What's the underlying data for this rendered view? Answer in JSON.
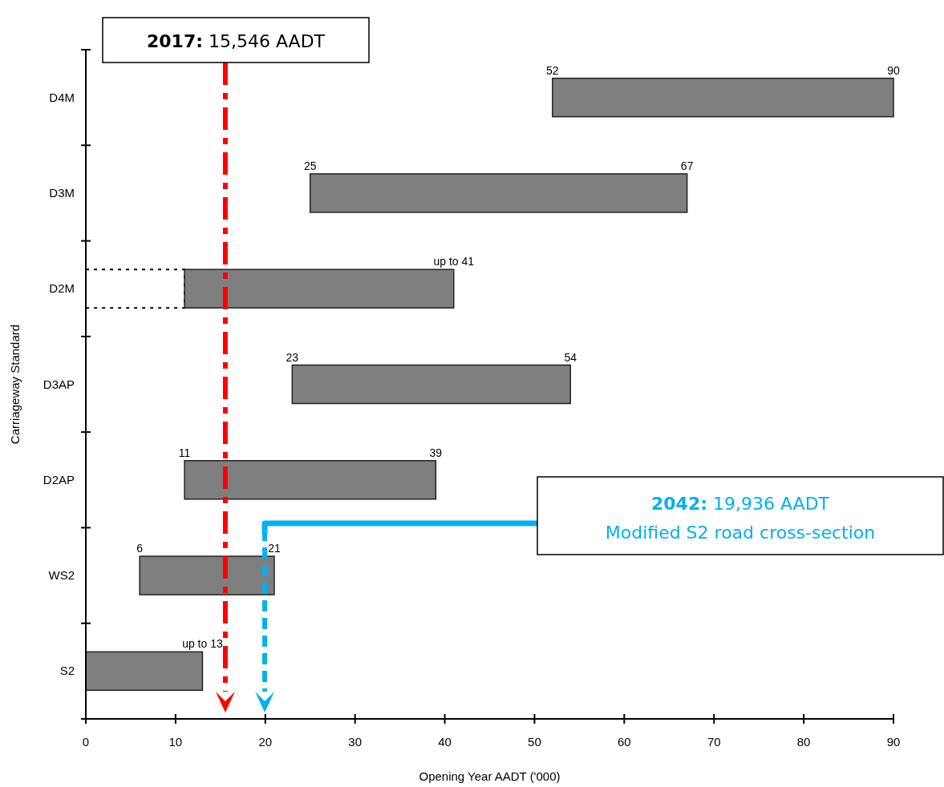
{
  "chart_data": {
    "type": "bar",
    "orientation": "horizontal",
    "xlabel": "Opening Year AADT ('000)",
    "ylabel": "Carriageway Standard",
    "categories": [
      "D4M",
      "D3M",
      "D2M",
      "D3AP",
      "D2AP",
      "WS2",
      "S2"
    ],
    "series": [
      {
        "color": "#7f7f7f",
        "base": [
          52,
          25,
          11,
          23,
          11,
          6,
          0
        ],
        "values": [
          38,
          42,
          30,
          31,
          28,
          15,
          13
        ]
      },
      {
        "color": "#000000",
        "line_style": "dotted",
        "values": [
          null,
          null,
          11,
          null,
          null,
          null,
          null
        ]
      }
    ],
    "xlim": [
      0,
      90
    ],
    "xticks": [
      0,
      10,
      20,
      30,
      40,
      50,
      60,
      70,
      80,
      90
    ],
    "grid": false,
    "annotations": [
      {
        "text": "52",
        "x": 52,
        "y": "D4M"
      },
      {
        "text": "90",
        "x": 90,
        "y": "D4M"
      },
      {
        "text": "25",
        "x": 25,
        "y": "D3M"
      },
      {
        "text": "67",
        "x": 67,
        "y": "D3M"
      },
      {
        "text": "up to 41",
        "x": 41,
        "y": "D2M"
      },
      {
        "text": "23",
        "x": 23,
        "y": "D3AP"
      },
      {
        "text": "54",
        "x": 54,
        "y": "D3AP"
      },
      {
        "text": "11",
        "x": 11,
        "y": "D2AP"
      },
      {
        "text": "39",
        "x": 39,
        "y": "D2AP"
      },
      {
        "text": "6",
        "x": 6,
        "y": "WS2"
      },
      {
        "text": "21",
        "x": 21,
        "y": "WS2"
      },
      {
        "text": "up to 13",
        "x": 13,
        "y": "S2"
      }
    ],
    "ref_lines": [
      {
        "axis": "x",
        "value": 15.546,
        "label": "2017: 15,546 AADT",
        "color": "#ff0000",
        "line_style": "dashdot"
      },
      {
        "axis": "x",
        "value": 19.936,
        "label": "2042: 19,936 AADT\nModified S2 road cross-section",
        "color": "#00b0f0",
        "line_style": "dashed"
      }
    ]
  }
}
